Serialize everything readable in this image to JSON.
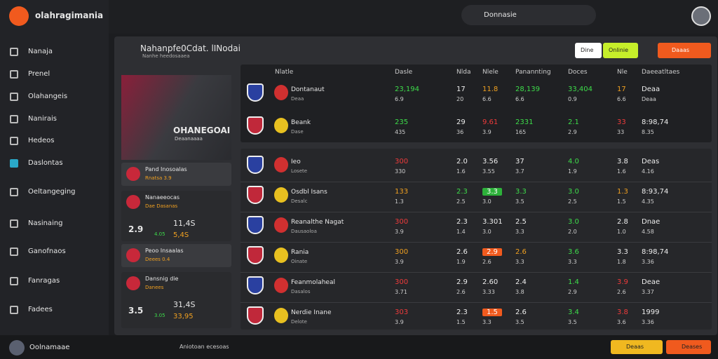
{
  "brand": "olahragimania",
  "nav": [
    "Nanaja",
    "Prenel",
    "Olahangeis",
    "Nanirais",
    "Hedeos",
    "Daslontas",
    "Oeltangeging",
    "Nasinaing",
    "Ganofnaos",
    "Fanragas",
    "Fadees"
  ],
  "user": "Oolnamaae",
  "search": "Donnasie",
  "panel": {
    "title": "Nahanpfe0Cdat. lINodai",
    "subtitle": "Nanhe heedosaaea",
    "buttons": [
      "Dine",
      "Onlinie",
      "Daaas"
    ]
  },
  "featured": {
    "title": "OHANEGOAI",
    "subtitle": "Deaanaaaa"
  },
  "list": [
    {
      "title": "Pand Inosoalas",
      "sub": "Rnatsa 3.9"
    },
    {
      "title": "Nanaeeocas",
      "sub": "Dae Dasanas",
      "big": "11,4S",
      "score": "2.9",
      "a": "4.05",
      "b": "5,4S"
    },
    {
      "title": "Peoo Insaalas",
      "sub": "Deees 0.4"
    },
    {
      "title": "Dansnig die",
      "sub": "Danees",
      "big": "31,4S",
      "score": "3.5",
      "a": "3.05",
      "b": "33,95"
    }
  ],
  "table": {
    "headers": [
      "Nlatle",
      "Dasle",
      "Nlda",
      "Nlele",
      "Panannting",
      "Doces",
      "Nle",
      "Daeeatltaes"
    ],
    "top_rows": [
      {
        "name": "Dontanaut",
        "sub": "Deaa",
        "cells": [
          [
            "23,194",
            "6.9",
            "green"
          ],
          [
            "17",
            "20",
            "white"
          ],
          [
            "11.8",
            "6.6",
            "orange"
          ],
          [
            "28,139",
            "6.6",
            "green"
          ],
          [
            "33,404",
            "0.9",
            "green"
          ],
          [
            "17",
            "6.6",
            "orange"
          ],
          [
            "Deaa",
            "Deaa",
            "white"
          ]
        ]
      },
      {
        "name": "Beank",
        "sub": "Dase",
        "cells": [
          [
            "235",
            "435",
            "green"
          ],
          [
            "29",
            "36",
            "white"
          ],
          [
            "9.61",
            "3.9",
            "red"
          ],
          [
            "2331",
            "165",
            "green"
          ],
          [
            "2.1",
            "2.9",
            "green"
          ],
          [
            "33",
            "33",
            "red"
          ],
          [
            "8:98,74",
            "8.35",
            "white"
          ]
        ]
      }
    ],
    "rows": [
      {
        "name": "Ieo",
        "sub": "Losete",
        "cells": [
          [
            "300",
            "330",
            "red"
          ],
          [
            "2.0",
            "1.6",
            "white"
          ],
          [
            "3.56",
            "3.55",
            "white"
          ],
          [
            "37",
            "3.7",
            "white"
          ],
          [
            "4.0",
            "1.9",
            "green"
          ],
          [
            "3.8",
            "1.6",
            "white"
          ],
          [
            "Deas",
            "4.16",
            "white"
          ]
        ]
      },
      {
        "name": "Osdbl Isans",
        "sub": "Desalc",
        "cells": [
          [
            "133",
            "1.3",
            "orange"
          ],
          [
            "2.3",
            "2.5",
            "green"
          ],
          [
            "3.3",
            "3.0",
            "greenbox"
          ],
          [
            "3.3",
            "3.5",
            "green"
          ],
          [
            "3.0",
            "2.5",
            "green"
          ],
          [
            "1.3",
            "1.5",
            "orange"
          ],
          [
            "8:93,74",
            "4.35",
            "white"
          ]
        ]
      },
      {
        "name": "Reanalthe Nagat",
        "sub": "Dausaoloa",
        "cells": [
          [
            "300",
            "3.9",
            "red"
          ],
          [
            "2.3",
            "1.4",
            "white"
          ],
          [
            "3.301",
            "3.0",
            "white"
          ],
          [
            "2.5",
            "3.3",
            "white"
          ],
          [
            "3.0",
            "2.0",
            "green"
          ],
          [
            "2.8",
            "1.0",
            "white"
          ],
          [
            "Dnae",
            "4.58",
            "white"
          ]
        ]
      },
      {
        "name": "Rania",
        "sub": "Oinate",
        "cells": [
          [
            "300",
            "3.9",
            "orange"
          ],
          [
            "2.6",
            "1.9",
            "white"
          ],
          [
            "2.9",
            "2.6",
            "orangebox"
          ],
          [
            "2.6",
            "3.3",
            "orange"
          ],
          [
            "3.6",
            "3.3",
            "green"
          ],
          [
            "3.3",
            "1.8",
            "white"
          ],
          [
            "8:98,74",
            "3.36",
            "white"
          ]
        ]
      },
      {
        "name": "Feanmolaheal",
        "sub": "Dasalos",
        "cells": [
          [
            "300",
            "3.71",
            "red"
          ],
          [
            "2.9",
            "2.6",
            "white"
          ],
          [
            "2.60",
            "3.33",
            "white"
          ],
          [
            "2.4",
            "3.8",
            "white"
          ],
          [
            "1.4",
            "2.9",
            "green"
          ],
          [
            "3.9",
            "2.6",
            "red"
          ],
          [
            "Deae",
            "3.37",
            "white"
          ]
        ]
      },
      {
        "name": "Nerdie Inane",
        "sub": "Delote",
        "cells": [
          [
            "303",
            "3.9",
            "red"
          ],
          [
            "2.3",
            "1.5",
            "white"
          ],
          [
            "1.5",
            "3.3",
            "orangebox"
          ],
          [
            "2.6",
            "3.5",
            "white"
          ],
          [
            "3.4",
            "3.5",
            "green"
          ],
          [
            "3.8",
            "3.6",
            "red"
          ],
          [
            "1999",
            "3.36",
            "white"
          ]
        ]
      }
    ]
  },
  "footer": {
    "text": "Aniotoan ecesoas",
    "buttons": [
      "Deaas",
      "Deases"
    ]
  }
}
